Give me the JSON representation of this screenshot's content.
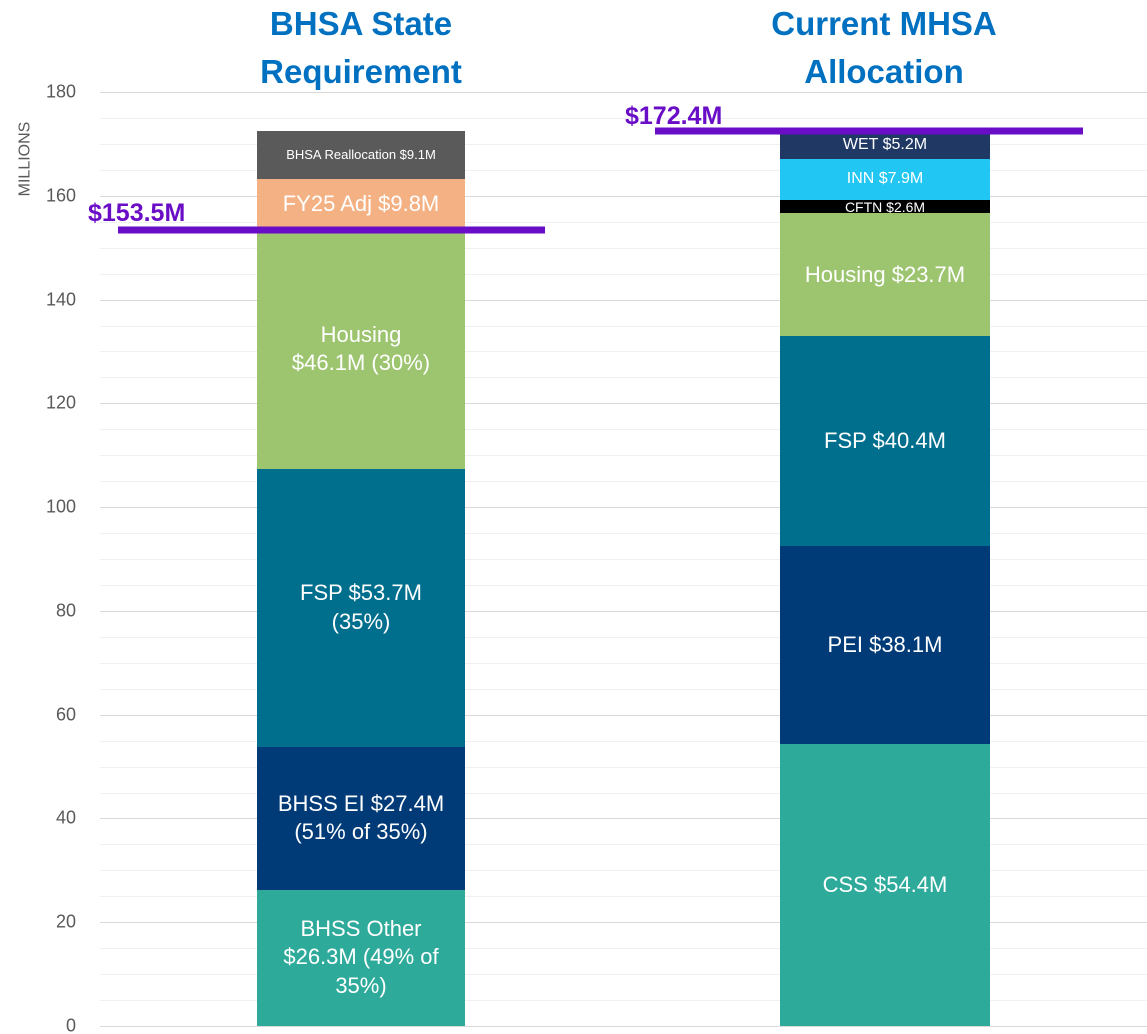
{
  "chart_data": {
    "type": "bar",
    "stacked": true,
    "ylabel": "MILLIONS",
    "ylim": [
      0,
      180
    ],
    "yticks": [
      0,
      20,
      40,
      60,
      80,
      100,
      120,
      140,
      160,
      180
    ],
    "minor_yticks": [
      5,
      10,
      15,
      25,
      30,
      35,
      45,
      50,
      55,
      65,
      70,
      75,
      85,
      90,
      95,
      105,
      110,
      115,
      125,
      130,
      135,
      145,
      150,
      155,
      165,
      170,
      175
    ],
    "grid": true,
    "columns": [
      {
        "title": [
          "BHSA State",
          "Requirement"
        ],
        "reference": {
          "label": "$153.5M",
          "value": 153.5,
          "color": "#6a0dc6"
        },
        "segments": [
          {
            "label": [
              "BHSS Other",
              "$26.3M (49% of",
              "35%)"
            ],
            "value": 26.3,
            "color": "#2eaa9b"
          },
          {
            "label": [
              "BHSS EI $27.4M",
              "(51% of 35%)"
            ],
            "value": 27.4,
            "color": "#003b78"
          },
          {
            "label": [
              "FSP $53.7M",
              "(35%)"
            ],
            "value": 53.7,
            "color": "#006e8d"
          },
          {
            "label": [
              "Housing",
              "$46.1M (30%)"
            ],
            "value": 46.1,
            "color": "#9dc46f"
          },
          {
            "label": [
              "FY25 Adj $9.8M"
            ],
            "value": 9.8,
            "color": "#f4b183"
          },
          {
            "label": [
              "BHSA Reallocation  $9.1M"
            ],
            "value": 9.1,
            "color": "#5a5a5a"
          }
        ]
      },
      {
        "title": [
          "Current MHSA",
          "Allocation"
        ],
        "reference": {
          "label": "$172.4M",
          "value": 172.4,
          "color": "#6a0dc6"
        },
        "segments": [
          {
            "label": [
              "CSS $54.4M"
            ],
            "value": 54.4,
            "color": "#2eaa9b"
          },
          {
            "label": [
              "PEI $38.1M"
            ],
            "value": 38.1,
            "color": "#003b78"
          },
          {
            "label": [
              "FSP $40.4M"
            ],
            "value": 40.4,
            "color": "#006e8d"
          },
          {
            "label": [
              "Housing $23.7M"
            ],
            "value": 23.7,
            "color": "#9dc46f"
          },
          {
            "label": [
              "CFTN $2.6M"
            ],
            "value": 2.6,
            "color": "#000000"
          },
          {
            "label": [
              "INN $7.9M"
            ],
            "value": 7.9,
            "color": "#22c6f2"
          },
          {
            "label": [
              "WET $5.2M"
            ],
            "value": 5.2,
            "color": "#1f3864"
          }
        ]
      }
    ]
  }
}
